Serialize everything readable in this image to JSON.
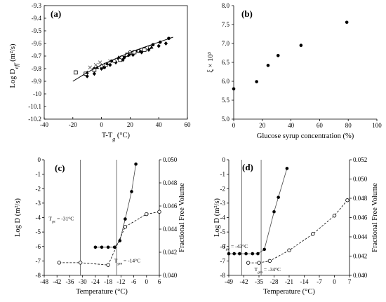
{
  "chart_data": [
    {
      "panel": "(a)",
      "type": "scatter",
      "xlabel": "T-T_g (°C)",
      "ylabel": "Log D_eff (m²/s)",
      "xlim": [
        -40,
        60
      ],
      "ylim": [
        -10.2,
        -9.3
      ],
      "xticks": [
        "-40",
        "-20",
        "0",
        "20",
        "40",
        "60"
      ],
      "yticks": [
        "-9.3",
        "-9.4",
        "-9.5",
        "-9.6",
        "-9.7",
        "-9.8",
        "-9.9",
        "-10",
        "-10.1",
        "-10.2"
      ],
      "grid": false,
      "series": [
        {
          "marker": "filled-circle",
          "points": [
            [
              -5,
              -9.8
            ],
            [
              2,
              -9.79
            ],
            [
              7,
              -9.74
            ],
            [
              12,
              -9.72
            ],
            [
              16,
              -9.71
            ],
            [
              20,
              -9.68
            ],
            [
              25,
              -9.66
            ],
            [
              30,
              -9.64
            ],
            [
              36,
              -9.61
            ],
            [
              41,
              -9.59
            ],
            [
              47,
              -9.56
            ]
          ]
        },
        {
          "marker": "filled-diamond",
          "points": [
            [
              -10,
              -9.86
            ],
            [
              -5,
              -9.84
            ],
            [
              0,
              -9.8
            ],
            [
              6,
              -9.77
            ],
            [
              10,
              -9.75
            ],
            [
              15,
              -9.73
            ],
            [
              22,
              -9.69
            ],
            [
              28,
              -9.67
            ],
            [
              33,
              -9.65
            ],
            [
              40,
              -9.62
            ],
            [
              45,
              -9.6
            ]
          ]
        },
        {
          "marker": "open-square",
          "points": [
            [
              -18,
              -9.83
            ],
            [
              -11,
              -9.84
            ],
            [
              -5,
              -9.81
            ],
            [
              3,
              -9.77
            ],
            [
              13,
              -9.73
            ],
            [
              18,
              -9.69
            ],
            [
              23,
              -9.67
            ],
            [
              30,
              -9.65
            ]
          ]
        },
        {
          "marker": "open-circle",
          "points": [
            [
              0,
              -9.78
            ],
            [
              9,
              -9.74
            ],
            [
              14,
              -9.71
            ],
            [
              20,
              -9.67
            ],
            [
              26,
              -9.66
            ],
            [
              34,
              -9.63
            ]
          ]
        },
        {
          "marker": "filled-triangle",
          "points": [
            [
              -10,
              -9.83
            ],
            [
              -3,
              -9.79
            ],
            [
              4,
              -9.76
            ],
            [
              12,
              -9.71
            ],
            [
              19,
              -9.69
            ],
            [
              27,
              -9.66
            ],
            [
              35,
              -9.63
            ]
          ]
        },
        {
          "marker": "cross",
          "points": [
            [
              -8,
              -9.79
            ],
            [
              -4,
              -9.77
            ],
            [
              -1,
              -9.75
            ],
            [
              6,
              -9.74
            ]
          ]
        },
        {
          "marker": "fit-line",
          "points": [
            [
              -20,
              -9.9
            ],
            [
              -10,
              -9.83
            ],
            [
              0,
              -9.77
            ],
            [
              10,
              -9.72
            ],
            [
              20,
              -9.67
            ],
            [
              30,
              -9.63
            ],
            [
              40,
              -9.59
            ],
            [
              50,
              -9.55
            ]
          ]
        }
      ]
    },
    {
      "panel": "(b)",
      "type": "scatter",
      "xlabel": "Glucose syrup concentration (%)",
      "ylabel": "ξ × 10³",
      "xlim": [
        0,
        100
      ],
      "ylim": [
        5.0,
        8.0
      ],
      "xticks": [
        "0",
        "20",
        "40",
        "60",
        "80",
        "100"
      ],
      "yticks": [
        "5.0",
        "5.5",
        "6.0",
        "6.5",
        "7.0",
        "7.5",
        "8.0"
      ],
      "grid": false,
      "x": [
        0,
        16,
        24,
        31,
        47,
        79
      ],
      "values": [
        5.8,
        5.99,
        6.42,
        6.68,
        6.95,
        7.56
      ]
    },
    {
      "panel": "(c)",
      "type": "line",
      "xlabel": "Temperature (°C)",
      "ylabel": "Log D (m²/s)",
      "y2label": "Fractional Free Volume",
      "xlim": [
        -48,
        6
      ],
      "ylim": [
        -8,
        0
      ],
      "y2lim": [
        0.04,
        0.05
      ],
      "xticks": [
        "-48",
        "-42",
        "-36",
        "-30",
        "-24",
        "-18",
        "-12",
        "-6",
        "0",
        "6"
      ],
      "yticks": [
        "0",
        "-1",
        "-2",
        "-3",
        "-4",
        "-5",
        "-6",
        "-7",
        "-8"
      ],
      "y2ticks": [
        "0.050",
        "0.048",
        "0.046",
        "0.044",
        "0.042",
        "0.040"
      ],
      "vlines": [
        -31,
        -14
      ],
      "annotations": [
        {
          "text": "T_gc = -31°C",
          "x": -40,
          "y": -4.2
        },
        {
          "text": "T_gm = -14°C",
          "x": -9,
          "y": -7.1
        }
      ],
      "series": [
        {
          "name": "Log D",
          "axis": "left",
          "style": "solid-filled-circle",
          "points": [
            [
              -24,
              -6.05
            ],
            [
              -21,
              -6.05
            ],
            [
              -18,
              -6.05
            ],
            [
              -15,
              -6.05
            ],
            [
              -12.5,
              -5.6
            ],
            [
              -10,
              -4.1
            ],
            [
              -7,
              -2.2
            ],
            [
              -5,
              -0.3
            ]
          ]
        },
        {
          "name": "Fractional Free Volume",
          "axis": "right",
          "style": "dashed-open-circle",
          "points": [
            [
              -41,
              0.0411
            ],
            [
              -31,
              0.0411
            ],
            [
              -18,
              0.0409
            ],
            [
              -10,
              0.0442
            ],
            [
              0,
              0.0453
            ],
            [
              6,
              0.0455
            ]
          ]
        }
      ]
    },
    {
      "panel": "(d)",
      "type": "line",
      "xlabel": "Temperature (°C)",
      "ylabel": "Log D (m²/s)",
      "y2label": "Fractional Free Volume",
      "xlim": [
        -49,
        7
      ],
      "ylim": [
        -8,
        0
      ],
      "y2lim": [
        0.04,
        0.052
      ],
      "xticks": [
        "-49",
        "-42",
        "-35",
        "-28",
        "-21",
        "-14",
        "-7",
        "0",
        "7"
      ],
      "yticks": [
        "0",
        "-1",
        "-2",
        "-3",
        "-4",
        "-5",
        "-6",
        "-7",
        "-8"
      ],
      "y2ticks": [
        "0.052",
        "0.050",
        "0.048",
        "0.046",
        "0.044",
        "0.042",
        "0.040"
      ],
      "vlines": [
        -43,
        -34
      ],
      "annotations": [
        {
          "text": "T_gc = -43°C",
          "x": -46,
          "y": -6.1
        },
        {
          "text": "T_gm = -34°C",
          "x": -31,
          "y": -7.7
        }
      ],
      "series": [
        {
          "name": "Log D",
          "axis": "left",
          "style": "solid-filled-circle",
          "points": [
            [
              -49,
              -6.5
            ],
            [
              -46.5,
              -6.5
            ],
            [
              -44,
              -6.5
            ],
            [
              -41,
              -6.5
            ],
            [
              -38,
              -6.5
            ],
            [
              -35.5,
              -6.5
            ],
            [
              -32.5,
              -6.2
            ],
            [
              -28,
              -3.6
            ],
            [
              -26,
              -2.6
            ],
            [
              -22,
              -0.6
            ]
          ]
        },
        {
          "name": "Fractional Free Volume",
          "axis": "right",
          "style": "dashed-open-circle",
          "points": [
            [
              -40,
              0.0413
            ],
            [
              -35,
              0.0413
            ],
            [
              -30,
              0.0415
            ],
            [
              -21,
              0.0426
            ],
            [
              -10,
              0.0443
            ],
            [
              0,
              0.0462
            ],
            [
              6,
              0.0478
            ]
          ]
        }
      ]
    }
  ]
}
